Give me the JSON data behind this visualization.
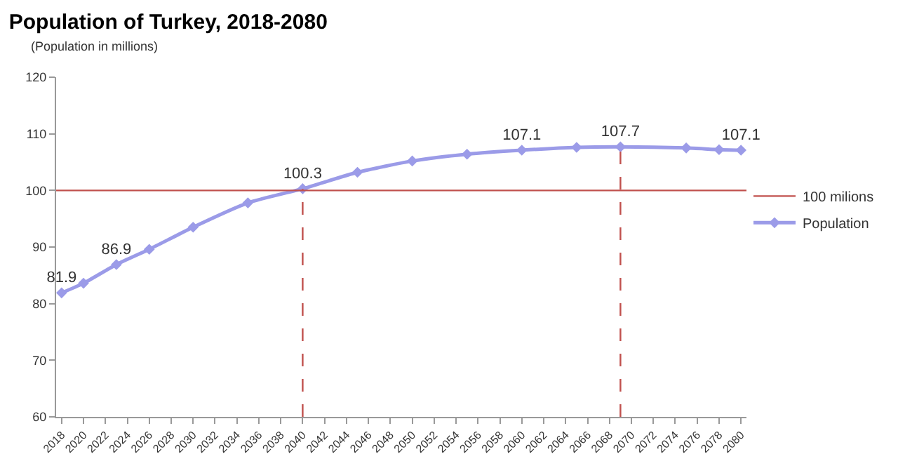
{
  "chart_data": {
    "type": "line",
    "title": "Population of Turkey, 2018-2080",
    "ylabel": "(Population in millions)",
    "x": [
      2018,
      2020,
      2023,
      2026,
      2030,
      2035,
      2040,
      2045,
      2050,
      2055,
      2060,
      2065,
      2069,
      2075,
      2078,
      2080
    ],
    "series": [
      {
        "name": "Population",
        "color": "#9b9be8",
        "values": [
          81.9,
          83.6,
          86.9,
          89.6,
          93.5,
          97.8,
          100.3,
          103.2,
          105.2,
          106.4,
          107.1,
          107.6,
          107.7,
          107.5,
          107.2,
          107.1
        ],
        "value_labels": [
          "81.9",
          null,
          "86.9",
          null,
          null,
          null,
          "100.3",
          null,
          null,
          null,
          "107.1",
          null,
          "107.7",
          null,
          null,
          "107.1"
        ]
      }
    ],
    "xlim": [
      2017.5,
      2080.5
    ],
    "xticks": [
      2018,
      2020,
      2022,
      2024,
      2026,
      2028,
      2030,
      2032,
      2034,
      2036,
      2038,
      2040,
      2042,
      2044,
      2046,
      2048,
      2050,
      2052,
      2054,
      2056,
      2058,
      2060,
      2062,
      2064,
      2066,
      2068,
      2070,
      2072,
      2074,
      2076,
      2078,
      2080
    ],
    "ylim": [
      60,
      120
    ],
    "yticks": [
      60,
      70,
      80,
      90,
      100,
      110,
      120
    ],
    "ref_lines": [
      {
        "axis": "y",
        "value": 100,
        "label": "100 milions",
        "color": "#c0504d",
        "line_style": "solid"
      },
      {
        "axis": "x",
        "value": 2040,
        "color": "#c0504d",
        "line_style": "dashed"
      },
      {
        "axis": "x",
        "value": 2069,
        "color": "#c0504d",
        "line_style": "dashed"
      }
    ],
    "marker": "diamond",
    "grid": false,
    "legend": "right"
  }
}
